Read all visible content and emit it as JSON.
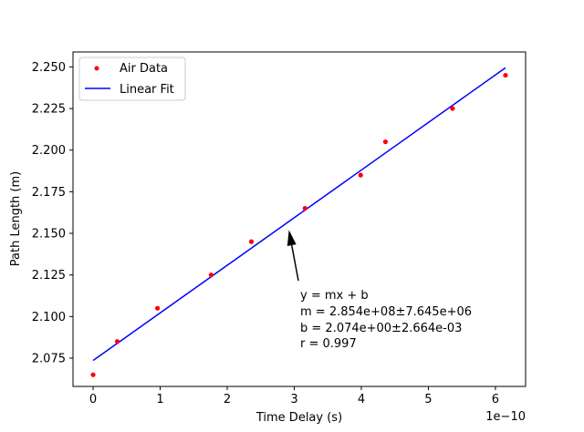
{
  "chart_data": {
    "type": "scatter",
    "xlabel": "Time Delay (s)",
    "ylabel": "Path Length (m)",
    "x_offset_label": "1e−10",
    "xlim": [
      -0.3,
      6.45
    ],
    "ylim": [
      2.058,
      2.259
    ],
    "x_ticks": [
      0,
      1,
      2,
      3,
      4,
      5,
      6
    ],
    "x_tick_labels": [
      "0",
      "1",
      "2",
      "3",
      "4",
      "5",
      "6"
    ],
    "y_ticks": [
      2.075,
      2.1,
      2.125,
      2.15,
      2.175,
      2.2,
      2.225,
      2.25
    ],
    "y_tick_labels": [
      "2.075",
      "2.100",
      "2.125",
      "2.150",
      "2.175",
      "2.200",
      "2.225",
      "2.250"
    ],
    "grid": false,
    "legend_position": "top-left",
    "series": [
      {
        "name": "Air Data",
        "kind": "scatter",
        "color": "#ff0000",
        "x": [
          0.0,
          0.36,
          0.96,
          1.76,
          2.36,
          3.16,
          3.99,
          4.36,
          5.36,
          6.15
        ],
        "y": [
          2.065,
          2.085,
          2.105,
          2.125,
          2.145,
          2.165,
          2.185,
          2.205,
          2.225,
          2.245
        ]
      },
      {
        "name": "Linear Fit",
        "kind": "line",
        "color": "#0000ff",
        "x": [
          0.0,
          6.15
        ],
        "y": [
          2.0736,
          2.2495
        ]
      }
    ],
    "annotation": {
      "lines": [
        "y = mx + b",
        "m = 2.854e+08±7.645e+06",
        "b = 2.074e+00±2.664e-03",
        "r = 0.997"
      ],
      "arrow_target": [
        2.92,
        2.152
      ]
    }
  }
}
